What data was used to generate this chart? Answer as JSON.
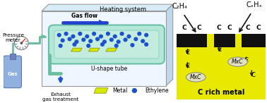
{
  "bg_color": "#ffffff",
  "heating_system_label": "Heating system",
  "gas_flow_label": "Gas flow",
  "u_shape_label": "U-shape tube",
  "pressure_meter_label": "Pressure\nmeter",
  "exhaust_label": "Exhaust\ngas treatment",
  "gas_label": "Gas",
  "metal_label": "Metal",
  "ethylene_label": "Ethylene",
  "c2h4_label": "C₂H₄",
  "cxhy_label": "CₓHₓ",
  "c_rich_label": "C rich metal",
  "mxc_label": "MxC",
  "tube_color": "#b3e8d8",
  "tube_outline": "#6abfa0",
  "metal_color": "#d4e800",
  "ethylene_color": "#1a52cc",
  "yellow_bg": "#e8e800",
  "black_carbon": "#111111",
  "mxc_bg": "#e0e0c0",
  "arrow_color": "#111111",
  "box_face": "#eef6ff",
  "box_top": "#d8ecf8",
  "box_right": "#c0d8ee"
}
